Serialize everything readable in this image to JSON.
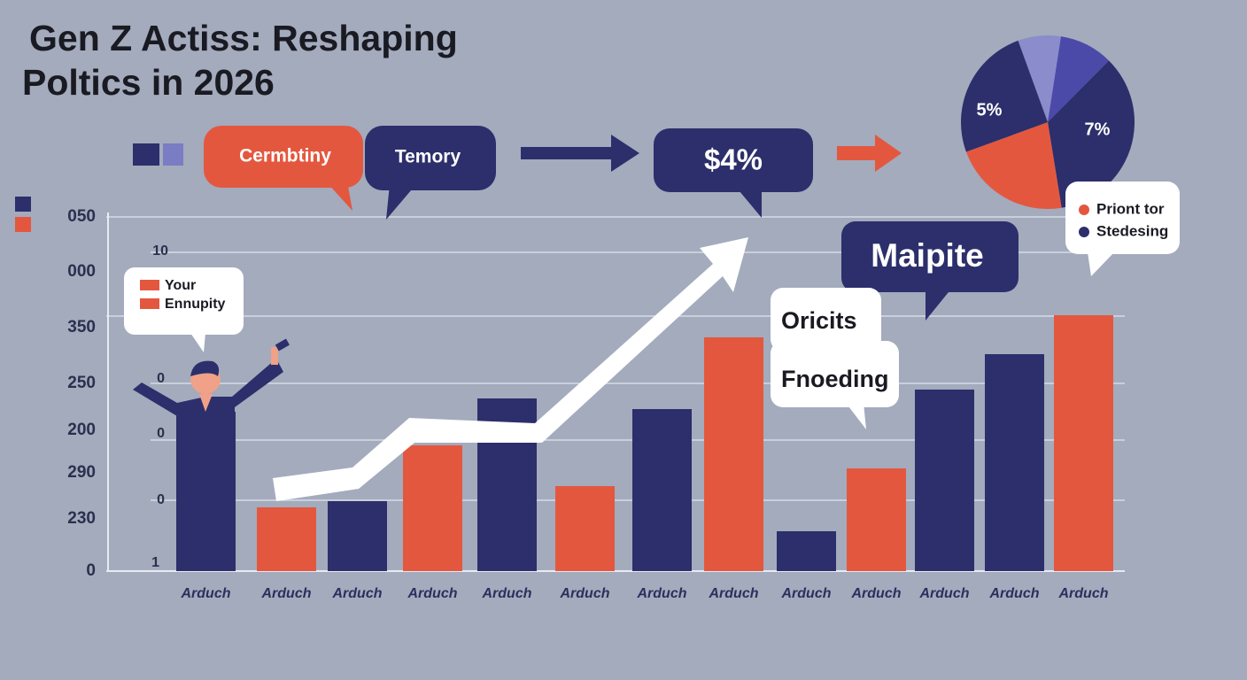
{
  "chart_data": [
    {
      "type": "bar",
      "title_lines": [
        "Gen Z Actiss: Reshaping",
        "Poltics in 2026"
      ],
      "categories": [
        "Arduch",
        "Arduch",
        "Arduch",
        "Arduch",
        "Arduch",
        "Arduch",
        "Arduch",
        "Arduch",
        "Arduch",
        "Arduch",
        "Arduch",
        "Arduch",
        "Arduch"
      ],
      "values": [
        180,
        72,
        79,
        142,
        195,
        96,
        183,
        264,
        45,
        116,
        205,
        245,
        289
      ],
      "colors": [
        "#2c2f6b",
        "#e4573f",
        "#2c2f6b",
        "#e4573f",
        "#2c2f6b",
        "#e4573f",
        "#2c2f6b",
        "#e4573f",
        "#2c2f6b",
        "#e4573f",
        "#2c2f6b",
        "#2c2f6b",
        "#e4573f"
      ],
      "ylim": [
        0,
        400
      ],
      "y_axis_labels": [
        "050",
        "000",
        "350",
        "250",
        "200",
        "290",
        "230",
        "0"
      ],
      "inner_labels": [
        "10",
        "0",
        "0",
        "0",
        "1"
      ],
      "legend": [
        {
          "label": "Your",
          "color": "#e4573f"
        },
        {
          "label": "Ennupity",
          "color": "#e4573f"
        }
      ],
      "bubbles": [
        "Cermbtiny",
        "Temory",
        "$4%",
        "Maipite",
        "Oricits",
        "Fnoeding"
      ]
    },
    {
      "type": "pie",
      "values": [
        8,
        10,
        35,
        22,
        25
      ],
      "colors": [
        "#8a8ccc",
        "#4b4aa8",
        "#2c2f6b",
        "#e4573f",
        "#2c2f6b"
      ],
      "annotations": [
        "5%",
        "7%"
      ],
      "legend": [
        {
          "label": "Priont tor",
          "color": "#e4573f"
        },
        {
          "label": "Stedesing",
          "color": "#2c2f6b"
        }
      ]
    }
  ]
}
